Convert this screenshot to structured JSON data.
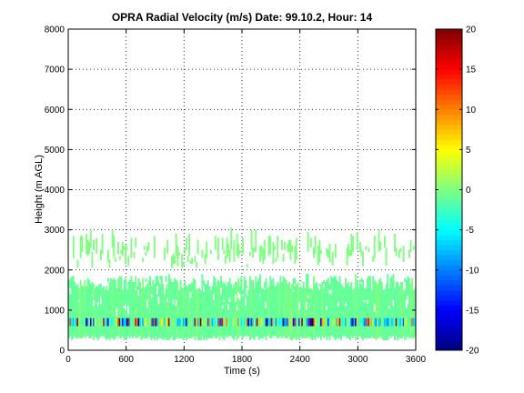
{
  "chart_data": {
    "type": "heatmap",
    "title": "OPRA Radial Velocity (m/s)  Date: 99.10.2, Hour: 14",
    "xlabel": "Time (s)",
    "ylabel": "Height (m AGL)",
    "xlim": [
      0,
      3600
    ],
    "ylim": [
      0,
      8000
    ],
    "xticks": [
      0,
      600,
      1200,
      1800,
      2400,
      3000,
      3600
    ],
    "yticks": [
      0,
      1000,
      2000,
      3000,
      4000,
      5000,
      6000,
      7000,
      8000
    ],
    "grid": true,
    "colorbar": {
      "colormap": "jet",
      "clim": [
        -20,
        20
      ],
      "ticks": [
        -20,
        -15,
        -10,
        -5,
        0,
        5,
        10,
        15,
        20
      ]
    },
    "bands": [
      {
        "height_range": [
          250,
          1900
        ],
        "velocity": -1,
        "coverage": "dense"
      },
      {
        "height_range": [
          550,
          800
        ],
        "velocity": "variable -20 to 20",
        "coverage": "intermittent"
      },
      {
        "height_range": [
          2000,
          2900
        ],
        "velocity": 0,
        "coverage": "sparse"
      }
    ]
  }
}
